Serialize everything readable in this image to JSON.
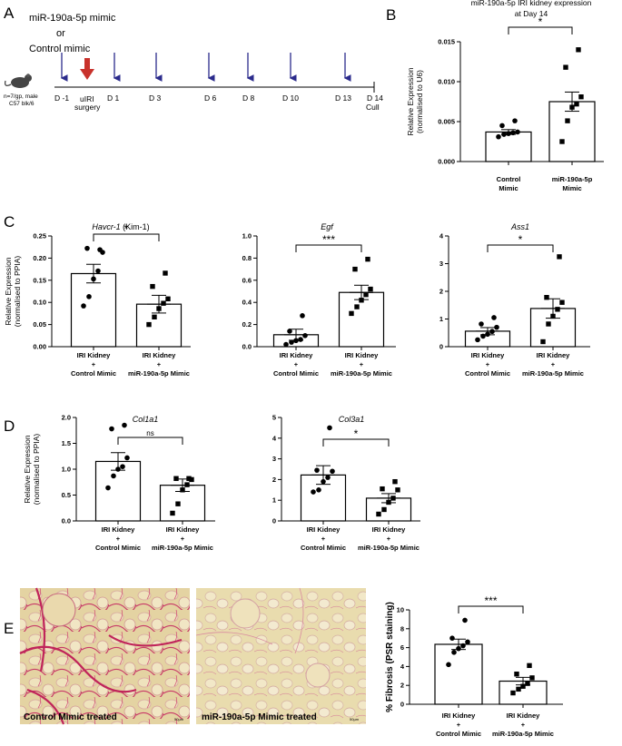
{
  "panel_letters": {
    "a": "A",
    "b": "B",
    "c": "C",
    "d": "D",
    "e": "E"
  },
  "timeline": {
    "treatment_lines": [
      "miR-190a-5p mimic",
      "or",
      "Control mimic"
    ],
    "mouse_info_lines": [
      "n=7/gp, male",
      "C57 blk/6"
    ],
    "days": [
      "D -1",
      "D 1",
      "D 3",
      "D 6",
      "D 8",
      "D 10",
      "D 13",
      "D 14"
    ],
    "surgery_lines": [
      "uIRI",
      "surgery"
    ],
    "cull": "Cull",
    "colors": {
      "arrow": "#2b2b8c",
      "surgery_arrow": "#c8312b"
    }
  },
  "images": {
    "left_caption": "Control Mimic treated",
    "right_caption": "miR-190a-5p Mimic treated",
    "left_scale": "50µm",
    "right_scale": "50µm"
  },
  "chart_data": [
    {
      "id": "b",
      "type": "bar",
      "title_lines": [
        "miR-190a-5p IRI kidney expression",
        "at Day 14"
      ],
      "title_italic": false,
      "ylabel_lines": [
        "Relative Expression",
        "(normalised to U6)"
      ],
      "ylim": [
        0,
        0.015
      ],
      "yticks": [
        "0.000",
        "0.005",
        "0.010",
        "0.015"
      ],
      "categories": [
        [
          "Control",
          "Mimic"
        ],
        [
          "miR-190a-5p",
          "Mimic"
        ]
      ],
      "bold_categories": true,
      "values": [
        0.0037,
        0.0075
      ],
      "sem": [
        0.0003,
        0.0012
      ],
      "points": [
        [
          0.0031,
          0.0034,
          0.0035,
          0.0036,
          0.0037,
          0.0045,
          0.0051
        ],
        [
          0.0025,
          0.0051,
          0.0068,
          0.0072,
          0.0081,
          0.0118,
          0.014
        ]
      ],
      "significance": "*"
    },
    {
      "id": "c1",
      "type": "bar",
      "title_lines": [
        "Havcr-1"
      ],
      "title_suffix": " (Kim-1)",
      "title_italic": true,
      "ylabel_lines": [
        "Relative Expression",
        "(normalised to PPIA)"
      ],
      "ylim": [
        0,
        0.25
      ],
      "yticks": [
        "0.00",
        "0.05",
        "0.10",
        "0.15",
        "0.20",
        "0.25"
      ],
      "categories": [
        [
          "IRI Kidney",
          "+",
          "Control Mimic"
        ],
        [
          "IRI Kidney",
          "+",
          "miR-190a-5p Mimic"
        ]
      ],
      "bold_categories": true,
      "values": [
        0.165,
        0.096
      ],
      "sem": [
        0.021,
        0.02
      ],
      "points": [
        [
          0.092,
          0.113,
          0.153,
          0.171,
          0.213,
          0.222,
          0.219
        ],
        [
          0.05,
          0.067,
          0.086,
          0.098,
          0.108,
          0.136,
          0.166
        ]
      ],
      "significance": "*"
    },
    {
      "id": "c2",
      "type": "bar",
      "title_lines": [
        "Egf"
      ],
      "title_suffix": "",
      "title_italic": true,
      "ylabel_lines": [],
      "ylim": [
        0,
        1.0
      ],
      "yticks": [
        "0.0",
        "0.2",
        "0.4",
        "0.6",
        "0.8",
        "1.0"
      ],
      "categories": [
        [
          "IRI Kidney",
          "+",
          "Control Mimic"
        ],
        [
          "IRI Kidney",
          "+",
          "miR-190a-5p Mimic"
        ]
      ],
      "bold_categories": true,
      "values": [
        0.108,
        0.49
      ],
      "sem": [
        0.05,
        0.065
      ],
      "points": [
        [
          0.02,
          0.04,
          0.055,
          0.065,
          0.1,
          0.14,
          0.28
        ],
        [
          0.3,
          0.36,
          0.42,
          0.47,
          0.52,
          0.7,
          0.79
        ]
      ],
      "significance": "***"
    },
    {
      "id": "c3",
      "type": "bar",
      "title_lines": [
        "Ass1"
      ],
      "title_suffix": "",
      "title_italic": true,
      "ylabel_lines": [],
      "ylim": [
        0,
        4
      ],
      "yticks": [
        "0",
        "1",
        "2",
        "3",
        "4"
      ],
      "categories": [
        [
          "IRI Kidney",
          "+",
          "Control Mimic"
        ],
        [
          "IRI Kidney",
          "+",
          "miR-190a-5p Mimic"
        ]
      ],
      "bold_categories": true,
      "values": [
        0.56,
        1.38
      ],
      "sem": [
        0.13,
        0.35
      ],
      "points": [
        [
          0.25,
          0.38,
          0.45,
          0.55,
          0.7,
          0.82,
          1.05
        ],
        [
          0.18,
          0.82,
          1.1,
          1.35,
          1.6,
          1.78,
          3.25
        ]
      ],
      "significance": "*"
    },
    {
      "id": "d1",
      "type": "bar",
      "title_lines": [
        "Col1a1"
      ],
      "title_suffix": "",
      "title_italic": true,
      "ylabel_lines": [
        "Relative Expression",
        "(normalised to PPIA)"
      ],
      "ylim": [
        0,
        2.0
      ],
      "yticks": [
        "0.0",
        "0.5",
        "1.0",
        "1.5",
        "2.0"
      ],
      "categories": [
        [
          "IRI Kidney",
          "+",
          "Control Mimic"
        ],
        [
          "IRI Kidney",
          "+",
          "miR-190a-5p Mimic"
        ]
      ],
      "bold_categories": true,
      "values": [
        1.15,
        0.69
      ],
      "sem": [
        0.17,
        0.12
      ],
      "points": [
        [
          0.64,
          0.87,
          1.0,
          1.05,
          1.22,
          1.78,
          1.85
        ],
        [
          0.15,
          0.33,
          0.6,
          0.7,
          0.8,
          0.82,
          0.82
        ]
      ],
      "significance": "ns"
    },
    {
      "id": "d2",
      "type": "bar",
      "title_lines": [
        "Col3a1"
      ],
      "title_suffix": "",
      "title_italic": true,
      "ylabel_lines": [],
      "ylim": [
        0,
        5
      ],
      "yticks": [
        "0",
        "1",
        "2",
        "3",
        "4",
        "5"
      ],
      "categories": [
        [
          "IRI Kidney",
          "+",
          "Control Mimic"
        ],
        [
          "IRI Kidney",
          "+",
          "miR-190a-5p Mimic"
        ]
      ],
      "bold_categories": true,
      "values": [
        2.22,
        1.1
      ],
      "sem": [
        0.45,
        0.22
      ],
      "points": [
        [
          1.4,
          1.5,
          1.9,
          2.1,
          2.4,
          2.45,
          4.5
        ],
        [
          0.33,
          0.55,
          0.9,
          1.1,
          1.5,
          1.55,
          1.9
        ]
      ],
      "significance": "*"
    },
    {
      "id": "e",
      "type": "bar",
      "title_lines": [],
      "title_suffix": "",
      "title_italic": false,
      "ylabel_lines": [
        "% Fibrosis (PSR staining)"
      ],
      "ylabel_bold": true,
      "ylim": [
        0,
        10
      ],
      "yticks": [
        "0",
        "2",
        "4",
        "6",
        "8",
        "10"
      ],
      "categories": [
        [
          "IRI Kidney",
          "+",
          "Control Mimic"
        ],
        [
          "IRI Kidney",
          "+",
          "miR-190a-5p Mimic"
        ]
      ],
      "bold_categories": true,
      "values": [
        6.35,
        2.45
      ],
      "sem": [
        0.55,
        0.4
      ],
      "points": [
        [
          4.2,
          5.5,
          5.9,
          6.2,
          6.6,
          7.0,
          8.9
        ],
        [
          1.2,
          1.6,
          1.9,
          2.2,
          2.8,
          3.2,
          4.1
        ]
      ],
      "significance": "***"
    }
  ]
}
